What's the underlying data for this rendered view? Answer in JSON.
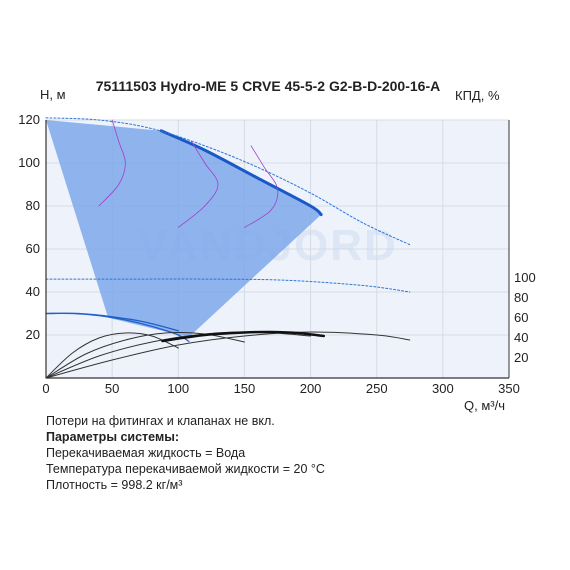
{
  "watermark": "VANDJORD",
  "notes": {
    "line1": "Потери на фитингах и клапанах не вкл.",
    "params_title": "Параметры системы:",
    "fluid": "Перекачиваемая жидкость = Вода",
    "temperature": "Температура перекачиваемой жидкости = 20 °С",
    "density": "Плотность = 998.2 кг/м³"
  },
  "chart_data": {
    "type": "line",
    "title": "75111503 Hydro-ME 5 CRVE 45-5-2 G2-B-D-200-16-A",
    "ylabel": "H, м",
    "y2label": "КПД, %",
    "xlabel": "Q, м³/ч",
    "xlim": [
      0,
      350
    ],
    "ylim": [
      0,
      120
    ],
    "y2lim": [
      0,
      120
    ],
    "xticks": [
      0,
      50,
      100,
      150,
      200,
      250,
      300,
      350
    ],
    "yticks": [
      20,
      40,
      60,
      80,
      100,
      120
    ],
    "y2ticks": [
      20,
      40,
      60,
      80,
      100
    ],
    "grid": true,
    "colors": {
      "area": "#7ea7ea",
      "max_curve": "#1a58c8",
      "system_curves": "#1f5fc8",
      "thin_curves": "#2e74d6",
      "power_curves": "#a040c8",
      "efficiency": "#111111",
      "thin_efficiency": "#333333"
    },
    "operating_area": {
      "Q": [
        0,
        87,
        120,
        160,
        200,
        208,
        108,
        47,
        0
      ],
      "H": [
        120,
        115,
        106,
        93,
        80,
        76,
        19,
        28,
        120
      ]
    },
    "series": [
      {
        "role": "max_speed",
        "width": 3,
        "dash": "",
        "x": [
          87,
          120,
          160,
          200,
          208
        ],
        "y": [
          115,
          106,
          93,
          80,
          76
        ]
      },
      {
        "role": "thin_curve",
        "width": 1,
        "dash": "2 2",
        "x": [
          0,
          40,
          80,
          120,
          160,
          200,
          240,
          275
        ],
        "y": [
          121,
          120,
          116,
          108,
          98,
          86,
          72,
          62
        ]
      },
      {
        "role": "thin_curve",
        "width": 1,
        "dash": "2 2",
        "x": [
          0,
          60,
          120,
          180,
          240,
          275
        ],
        "y": [
          46,
          46,
          46,
          45.5,
          43,
          40
        ]
      },
      {
        "role": "system_curve",
        "width": 1.3,
        "dash": "",
        "x": [
          0,
          20,
          40,
          60,
          80,
          100,
          108
        ],
        "y": [
          30,
          30,
          29,
          27,
          24,
          20,
          17
        ]
      },
      {
        "role": "system_curve",
        "width": 1.3,
        "dash": "",
        "x": [
          0,
          25,
          50,
          75,
          100
        ],
        "y": [
          30,
          30,
          28.5,
          26,
          22
        ]
      },
      {
        "role": "power_curve",
        "width": 0.8,
        "dash": "",
        "x": [
          50,
          55,
          60,
          55,
          40
        ],
        "y": [
          120,
          110,
          100,
          90,
          80
        ]
      },
      {
        "role": "power_curve",
        "width": 0.8,
        "dash": "",
        "x": [
          110,
          120,
          130,
          120,
          100
        ],
        "y": [
          110,
          100,
          90,
          80,
          70
        ]
      },
      {
        "role": "power_curve",
        "width": 0.8,
        "dash": "",
        "x": [
          155,
          165,
          175,
          170,
          150
        ],
        "y": [
          108,
          98,
          88,
          78,
          70
        ]
      },
      {
        "role": "efficiency_thin",
        "width": 1,
        "dash": "",
        "x": [
          0,
          20,
          40,
          60,
          80,
          100
        ],
        "y": [
          0,
          25,
          40,
          45,
          42,
          30
        ]
      },
      {
        "role": "efficiency_thin",
        "width": 1,
        "dash": "",
        "x": [
          0,
          30,
          60,
          90,
          120,
          150
        ],
        "y": [
          0,
          24,
          38,
          45,
          44,
          36
        ]
      },
      {
        "role": "efficiency_thin",
        "width": 1,
        "dash": "",
        "x": [
          0,
          40,
          80,
          120,
          160,
          200
        ],
        "y": [
          0,
          22,
          36,
          44,
          46,
          42
        ]
      },
      {
        "role": "efficiency_thin",
        "width": 1,
        "dash": "",
        "x": [
          0,
          50,
          100,
          150,
          200,
          250,
          275
        ],
        "y": [
          0,
          18,
          33,
          42,
          46,
          43,
          38
        ]
      },
      {
        "role": "efficiency_main",
        "width": 2.5,
        "dash": "",
        "x": [
          88,
          120,
          150,
          170,
          190,
          210
        ],
        "y": [
          37,
          43,
          45.5,
          46,
          45,
          42
        ]
      }
    ]
  }
}
